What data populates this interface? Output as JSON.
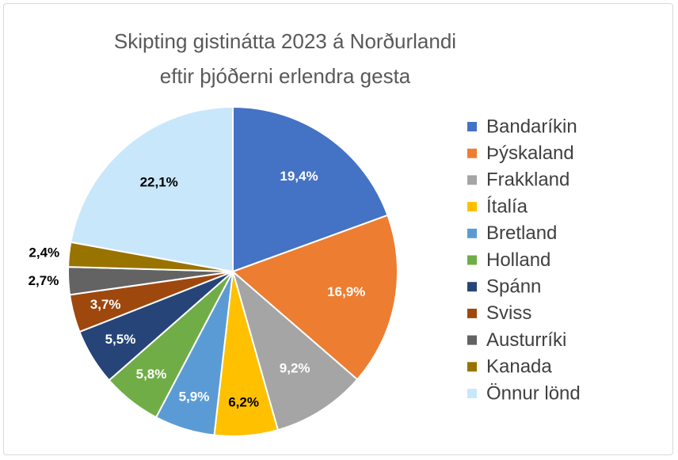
{
  "chart_data": {
    "type": "pie",
    "title": "Skipting gistinátta 2023 á Norðurlandi eftir þjóðerni erlendra gesta",
    "categories": [
      "Bandaríkin",
      "Þýskaland",
      "Frakkland",
      "Ítalía",
      "Bretland",
      "Holland",
      "Spánn",
      "Sviss",
      "Austurríki",
      "Kanada",
      "Önnur lönd"
    ],
    "values": [
      19.4,
      16.9,
      9.2,
      6.2,
      5.9,
      5.8,
      5.5,
      3.7,
      2.7,
      2.4,
      22.1
    ],
    "value_labels": [
      "19,4%",
      "16,9%",
      "9,2%",
      "6,2%",
      "5,9%",
      "5,8%",
      "5,5%",
      "3,7%",
      "2,7%",
      "2,4%",
      "22,1%"
    ],
    "colors": [
      "#4472c4",
      "#ed7d31",
      "#a5a5a5",
      "#ffc000",
      "#5b9bd5",
      "#70ad47",
      "#264478",
      "#9e480e",
      "#636363",
      "#997300",
      "#c9e7fa"
    ],
    "legend": "right"
  }
}
